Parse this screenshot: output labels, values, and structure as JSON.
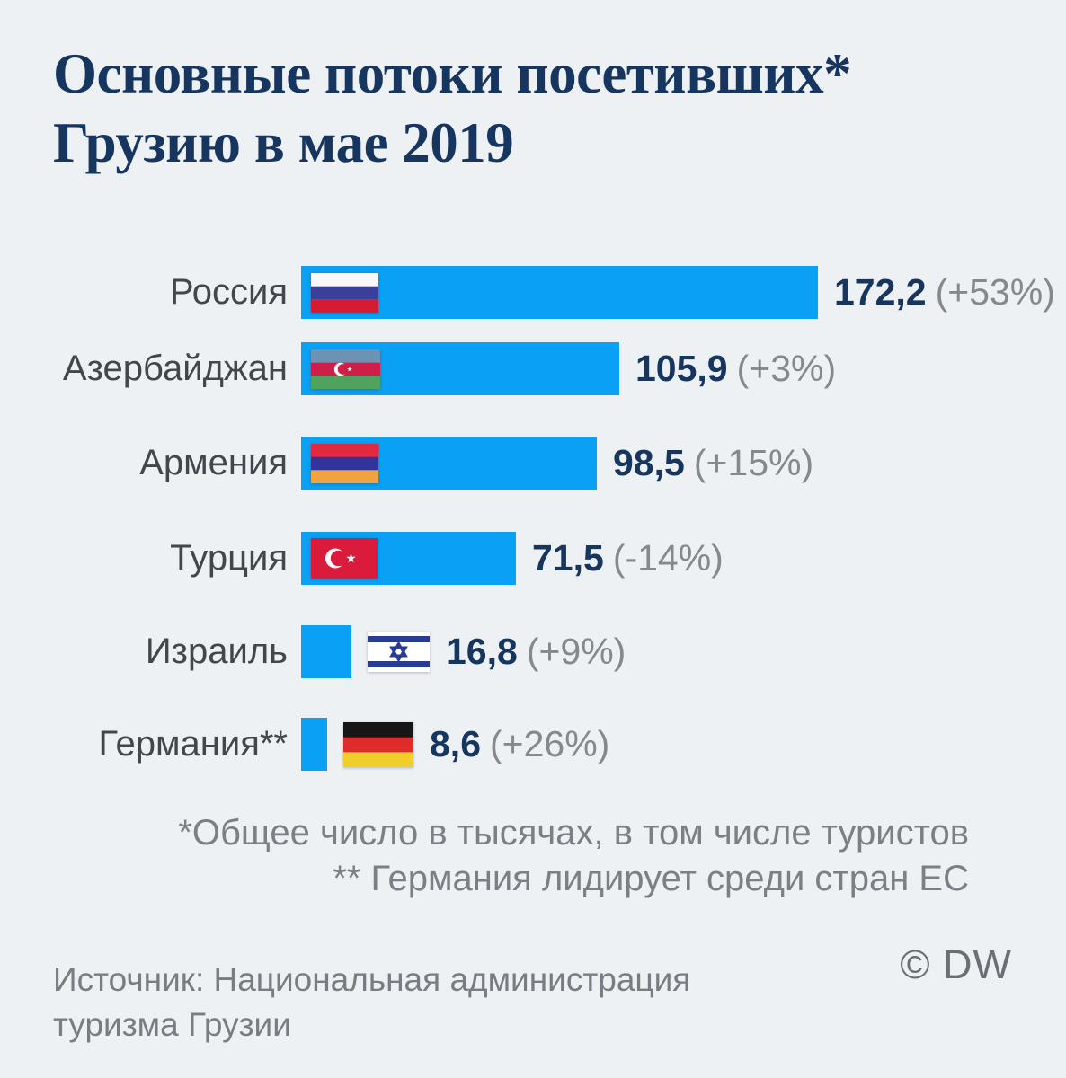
{
  "title": {
    "line1": "Основные потоки посетивших*",
    "line2": "Грузию в мае 2019"
  },
  "chart_data": {
    "type": "bar",
    "orientation": "horizontal",
    "title": "Основные потоки посетивших* Грузию в мае 2019",
    "categories": [
      "Россия",
      "Азербайджан",
      "Армения",
      "Турция",
      "Израиль",
      "Германия**"
    ],
    "values": [
      172.2,
      105.9,
      98.5,
      71.5,
      16.8,
      8.6
    ],
    "value_labels": [
      "172,2",
      "105,9",
      "98,5",
      "71,5",
      "16,8",
      "8,6"
    ],
    "change_labels": [
      "(+53%)",
      "(+3%)",
      "(+15%)",
      "(-14%)",
      "(+9%)",
      "(+26%)"
    ],
    "flags": [
      "russia-flag",
      "azerbaijan-flag",
      "armenia-flag",
      "turkey-flag",
      "israel-flag",
      "germany-flag"
    ],
    "flag_inside_bar": [
      true,
      true,
      true,
      true,
      false,
      false
    ],
    "xlim": [
      0,
      172.2
    ],
    "unit": "тысячи посетителей",
    "grid": false,
    "legend": false
  },
  "footnotes": {
    "line1": "*Общее число в тысячах, в том числе туристов",
    "line2": "** Германия лидирует среди стран ЕС"
  },
  "source": {
    "line1": "Источник: Национальная администрация",
    "line2": "туризма Грузии"
  },
  "credit": "© DW",
  "colors": {
    "background": "#eef1f4",
    "bar": "#0aa0f4",
    "title_text": "#16365f",
    "value_text": "#16365f",
    "percent_text": "#85898e",
    "label_text": "#42474d",
    "footnote_text": "#7b8086",
    "source_text": "#787d83",
    "credit_text": "#6a6f75"
  }
}
